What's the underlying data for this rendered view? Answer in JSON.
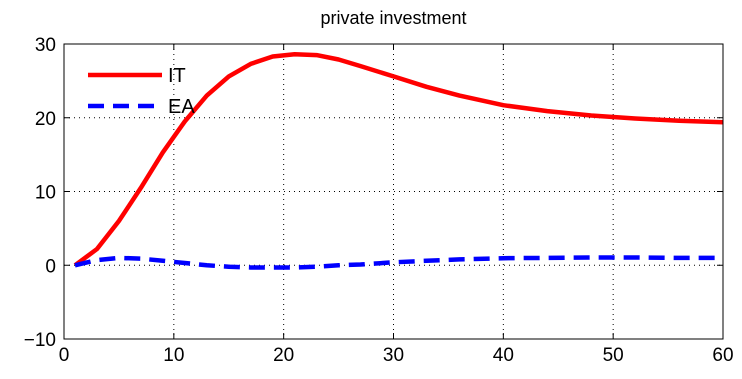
{
  "chart_data": {
    "type": "line",
    "title": "private investment",
    "xlabel": "",
    "ylabel": "",
    "xlim": [
      0,
      60
    ],
    "ylim": [
      -10,
      30
    ],
    "xticks": [
      0,
      10,
      20,
      30,
      40,
      50,
      60
    ],
    "yticks": [
      -10,
      0,
      10,
      20,
      30
    ],
    "x_tick_labels": [
      "0",
      "10",
      "20",
      "30",
      "40",
      "50",
      "60"
    ],
    "y_tick_labels": [
      "−10",
      "0",
      "10",
      "20",
      "30"
    ],
    "grid": true,
    "legend_position": "top-left",
    "series": [
      {
        "name": "IT",
        "color": "#ff0000",
        "style": "solid",
        "x": [
          1,
          3,
          5,
          7,
          9,
          11,
          13,
          15,
          17,
          19,
          21,
          23,
          25,
          27,
          30,
          33,
          36,
          40,
          44,
          48,
          52,
          56,
          60
        ],
        "y": [
          0,
          2.2,
          6,
          10.5,
          15.3,
          19.5,
          23,
          25.6,
          27.3,
          28.3,
          28.6,
          28.5,
          27.9,
          27,
          25.6,
          24.2,
          23,
          21.7,
          20.9,
          20.3,
          19.9,
          19.6,
          19.4
        ]
      },
      {
        "name": "EA",
        "color": "#0000ff",
        "style": "dashed",
        "x": [
          1,
          3,
          5,
          7,
          9,
          11,
          13,
          15,
          17,
          19,
          21,
          23,
          25,
          27,
          30,
          33,
          36,
          40,
          44,
          48,
          52,
          56,
          60
        ],
        "y": [
          0,
          0.7,
          1,
          0.9,
          0.6,
          0.3,
          0,
          -0.2,
          -0.3,
          -0.3,
          -0.3,
          -0.2,
          0,
          0.1,
          0.4,
          0.6,
          0.8,
          0.95,
          1,
          1.05,
          1.05,
          1,
          1
        ]
      }
    ]
  }
}
